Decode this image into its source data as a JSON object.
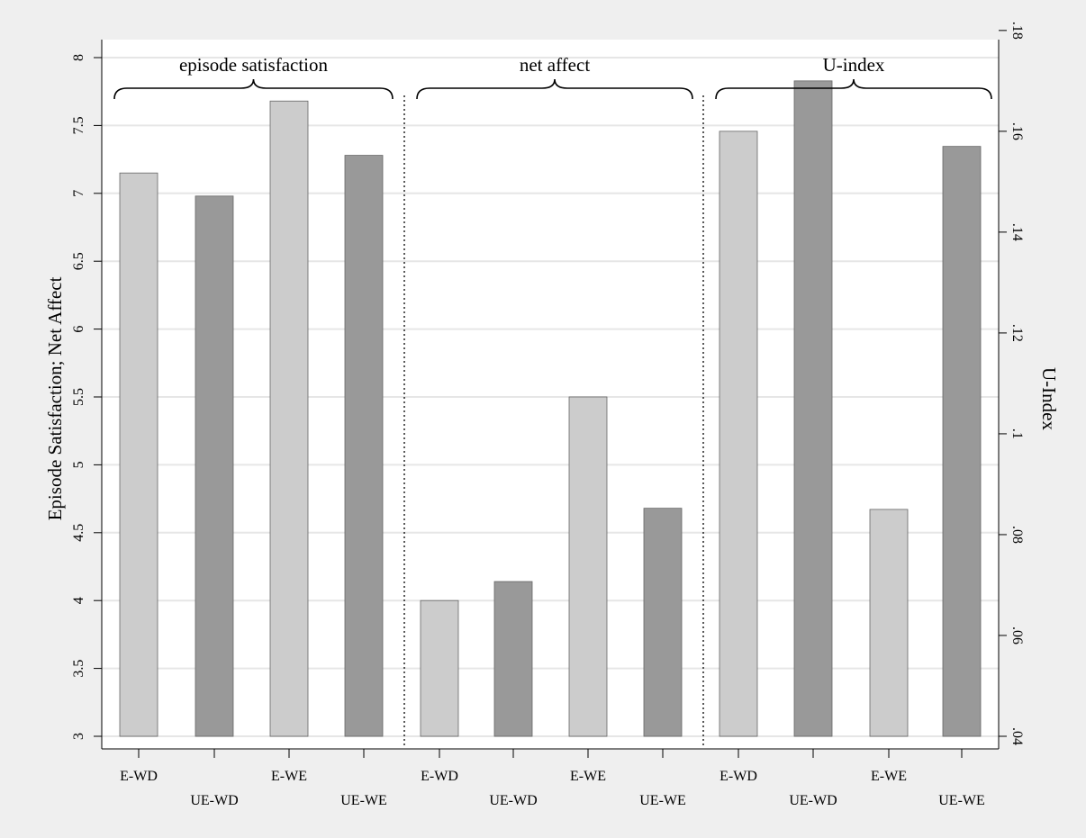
{
  "chart_data": {
    "type": "bar",
    "y_left": {
      "label": "Episode Satisfaction; Net Affect",
      "lim": [
        3,
        8.2
      ],
      "ticks": [
        3,
        3.5,
        4,
        4.5,
        5,
        5.5,
        6,
        6.5,
        7,
        7.5,
        8
      ],
      "tick_labels": [
        "3",
        "3.5",
        "4",
        "4.5",
        "5",
        "5.5",
        "6",
        "6.5",
        "7",
        "7.5",
        "8"
      ]
    },
    "y_right": {
      "label": "U-Index",
      "lim": [
        0.04,
        0.18
      ],
      "ticks": [
        0.04,
        0.06,
        0.08,
        0.1,
        0.12,
        0.14,
        0.16,
        0.18
      ],
      "tick_labels": [
        ".04",
        ".06",
        ".08",
        ".1",
        ".12",
        ".14",
        ".16",
        ".18"
      ]
    },
    "grid": true,
    "groups": [
      {
        "label": "episode satisfaction",
        "axis": "left",
        "bars": [
          {
            "category": "E-WD",
            "value": 7.15,
            "color": "#cccccc"
          },
          {
            "category": "UE-WD",
            "value": 6.98,
            "color": "#999999"
          },
          {
            "category": "E-WE",
            "value": 7.68,
            "color": "#cccccc"
          },
          {
            "category": "UE-WE",
            "value": 7.28,
            "color": "#999999"
          }
        ]
      },
      {
        "label": "net affect",
        "axis": "left",
        "bars": [
          {
            "category": "E-WD",
            "value": 4.0,
            "color": "#cccccc"
          },
          {
            "category": "UE-WD",
            "value": 4.14,
            "color": "#999999"
          },
          {
            "category": "E-WE",
            "value": 5.5,
            "color": "#cccccc"
          },
          {
            "category": "UE-WE",
            "value": 4.68,
            "color": "#999999"
          }
        ]
      },
      {
        "label": "U-index",
        "axis": "right",
        "bars": [
          {
            "category": "E-WD",
            "value": 0.16,
            "color": "#cccccc"
          },
          {
            "category": "UE-WD",
            "value": 0.17,
            "color": "#999999"
          },
          {
            "category": "E-WE",
            "value": 0.085,
            "color": "#cccccc"
          },
          {
            "category": "UE-WE",
            "value": 0.157,
            "color": "#999999"
          }
        ]
      }
    ]
  }
}
